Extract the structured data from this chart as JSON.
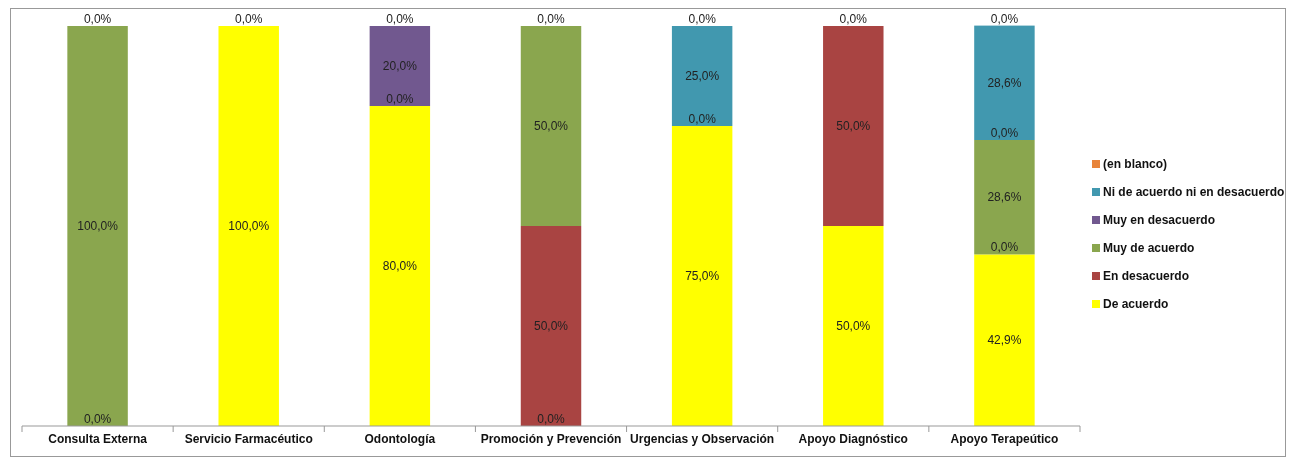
{
  "chart_data": {
    "type": "bar",
    "stacked": true,
    "categories": [
      "Consulta Externa",
      "Servicio Farmacéutico",
      "Odontología",
      "Promoción y Prevención",
      "Urgencias y Observación",
      "Apoyo Diagnóstico",
      "Apoyo Terapeútico"
    ],
    "ylim": [
      0,
      100
    ],
    "tick_labels": "x",
    "legend": "right",
    "annotations": [
      {
        "text": "0,0%",
        "x": "Consulta Externa",
        "y": 0
      },
      {
        "text": "0,0%",
        "x": "Odontología",
        "y": 80
      },
      {
        "text": "0,0%",
        "x": "Promoción y Prevención",
        "y": 0
      },
      {
        "text": "0,0%",
        "x": "Urgencias y Observación",
        "y": 75
      },
      {
        "text": "0,0%",
        "x": "Apoyo Terapeútico",
        "y": 42.9
      },
      {
        "text": "0,0%",
        "x": "Apoyo Terapeútico",
        "y": 71.5
      }
    ],
    "series": [
      {
        "name": "De acuerdo",
        "color": "#ffff00",
        "values": [
          null,
          100,
          80,
          null,
          75,
          50,
          42.9
        ],
        "value_labels": [
          null,
          "100,0%",
          "80,0%",
          null,
          "75,0%",
          "50,0%",
          "42,9%"
        ]
      },
      {
        "name": "En desacuerdo",
        "color": "#a94442",
        "values": [
          null,
          null,
          null,
          50,
          null,
          50,
          null
        ],
        "value_labels": [
          null,
          null,
          null,
          "50,0%",
          null,
          "50,0%",
          null
        ]
      },
      {
        "name": "Muy de acuerdo",
        "color": "#8aa64e",
        "values": [
          100,
          null,
          null,
          50,
          null,
          null,
          28.6
        ],
        "value_labels": [
          "100,0%",
          null,
          null,
          "50,0%",
          null,
          null,
          "28,6%"
        ]
      },
      {
        "name": "Muy en desacuerdo",
        "color": "#71588f",
        "values": [
          null,
          null,
          20,
          null,
          null,
          null,
          null
        ],
        "value_labels": [
          null,
          null,
          "20,0%",
          null,
          null,
          null,
          null
        ]
      },
      {
        "name": "Ni de acuerdo ni en desacuerdo",
        "color": "#4198af",
        "values": [
          null,
          null,
          null,
          null,
          25,
          null,
          28.6
        ],
        "value_labels": [
          null,
          null,
          null,
          null,
          "25,0%",
          null,
          "28,6%"
        ]
      },
      {
        "name": "(en blanco)",
        "color": "#e8843a",
        "values": [
          0,
          0,
          0,
          0,
          0,
          0,
          0
        ],
        "value_labels": [
          "0,0%",
          "0,0%",
          "0,0%",
          "0,0%",
          "0,0%",
          "0,0%",
          "0,0%"
        ]
      }
    ]
  }
}
